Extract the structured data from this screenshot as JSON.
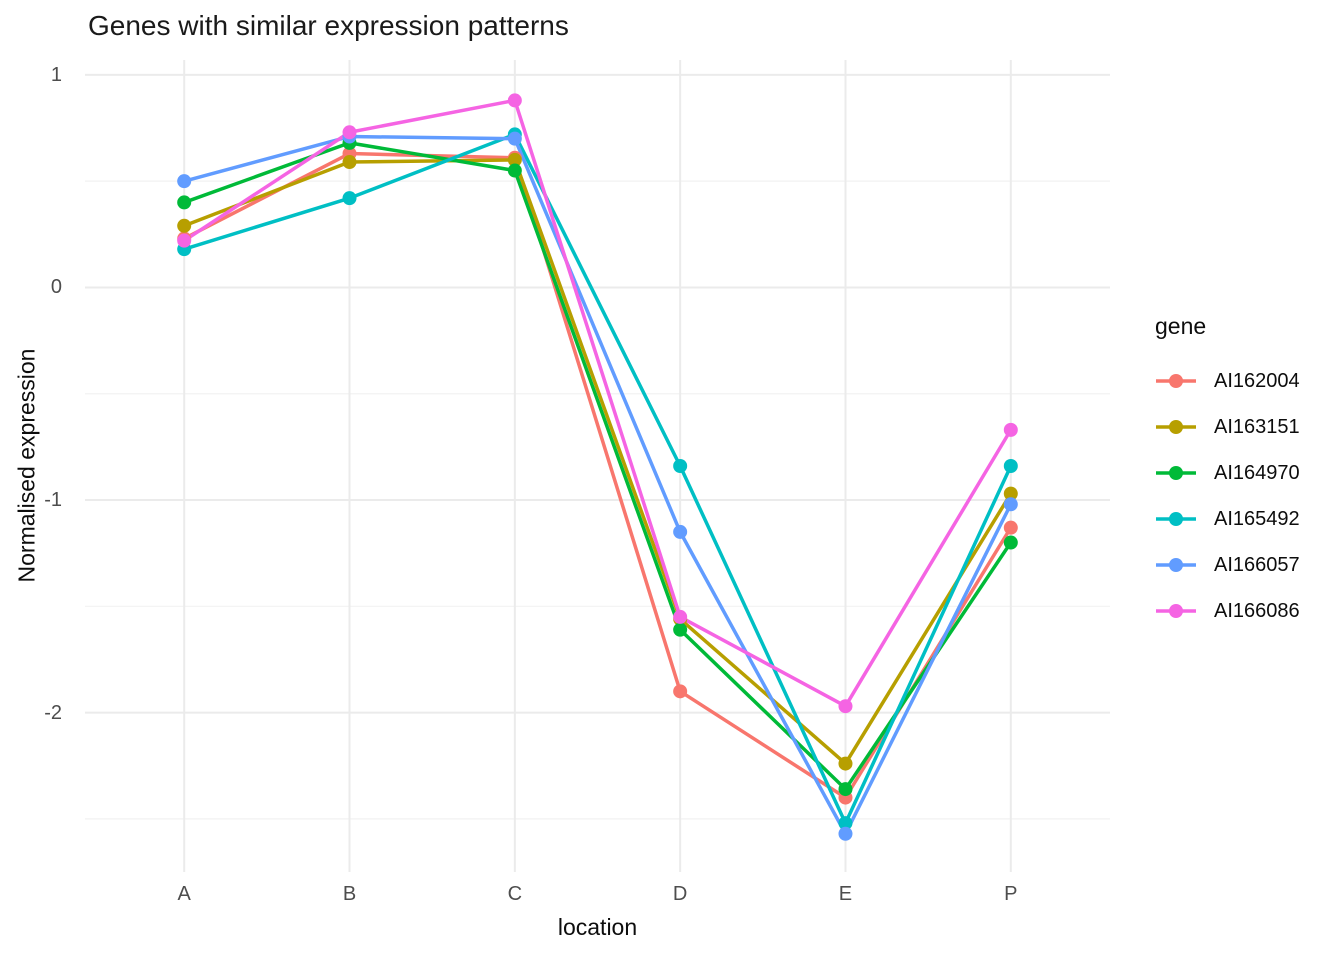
{
  "chart_data": {
    "type": "line",
    "title": "Genes with similar expression patterns",
    "xlabel": "location",
    "ylabel": "Normalised expression",
    "categories": [
      "A",
      "B",
      "C",
      "D",
      "E",
      "P"
    ],
    "y_ticks": [
      1,
      0,
      -1,
      -2
    ],
    "y_minor_ticks": [
      0.5,
      -0.5,
      -1.5,
      -2.5
    ],
    "ylim": [
      -2.75,
      1.07
    ],
    "grid": "major and minor horizontal, major vertical, light grey on white",
    "legend_title": "gene",
    "legend_position": "right",
    "point_style": "filled circle on every value",
    "series": [
      {
        "name": "AI162004",
        "color": "#F8766D",
        "values": [
          0.23,
          0.63,
          0.61,
          -1.9,
          -2.4,
          -1.13
        ]
      },
      {
        "name": "AI163151",
        "color": "#B79F00",
        "values": [
          0.29,
          0.59,
          0.6,
          -1.56,
          -2.24,
          -0.97
        ]
      },
      {
        "name": "AI164970",
        "color": "#00BA38",
        "values": [
          0.4,
          0.68,
          0.55,
          -1.61,
          -2.36,
          -1.2
        ]
      },
      {
        "name": "AI165492",
        "color": "#00BFC4",
        "values": [
          0.18,
          0.42,
          0.72,
          -0.84,
          -2.52,
          -0.84
        ]
      },
      {
        "name": "AI166057",
        "color": "#619CFF",
        "values": [
          0.5,
          0.71,
          0.7,
          -1.15,
          -2.57,
          -1.02
        ]
      },
      {
        "name": "AI166086",
        "color": "#F564E3",
        "values": [
          0.22,
          0.73,
          0.88,
          -1.55,
          -1.97,
          -0.67
        ]
      }
    ],
    "grid_major_color": "#EBEBEB",
    "grid_minor_color": "#F2F2F2",
    "tick_label_color": "#4D4D4D"
  }
}
